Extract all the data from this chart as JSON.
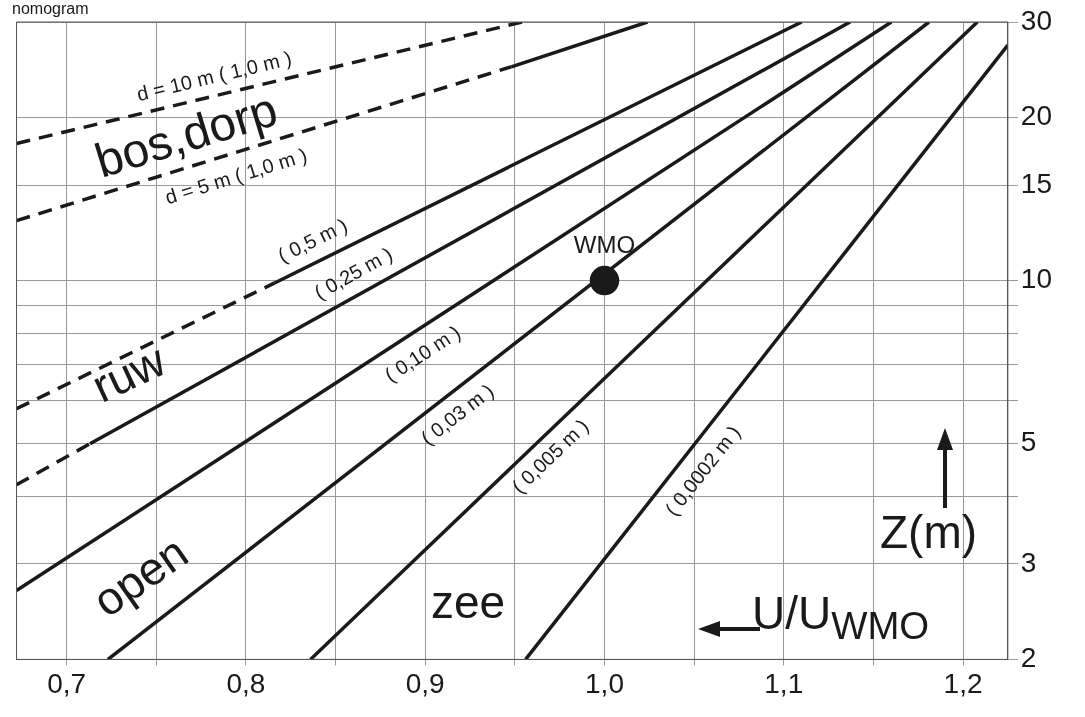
{
  "chart_data": {
    "type": "line",
    "title": "nomogram",
    "xlabel": "U/U$_{WMO}$",
    "ylabel": "Z(m)",
    "log": "y",
    "grid": true,
    "xlim": [
      0.672,
      1.225
    ],
    "ylim": [
      2,
      30
    ],
    "xticks": [
      {
        "value": 0.7,
        "label": "0,7"
      },
      {
        "value": 0.75,
        "label": null
      },
      {
        "value": 0.8,
        "label": "0,8"
      },
      {
        "value": 0.85,
        "label": null
      },
      {
        "value": 0.9,
        "label": "0,9"
      },
      {
        "value": 0.95,
        "label": null
      },
      {
        "value": 1.0,
        "label": "1,0"
      },
      {
        "value": 1.05,
        "label": null
      },
      {
        "value": 1.1,
        "label": "1,1"
      },
      {
        "value": 1.15,
        "label": null
      },
      {
        "value": 1.2,
        "label": "1,2"
      }
    ],
    "yticks": [
      2,
      3,
      {
        "value": 4,
        "label": null
      },
      5,
      {
        "value": 6,
        "label": null
      },
      {
        "value": 7,
        "label": null
      },
      {
        "value": 8,
        "label": null
      },
      {
        "value": 9,
        "label": null
      },
      10,
      15,
      20,
      30
    ],
    "series": [
      {
        "name": "d = 10 m ( 1,0 m )",
        "color": "#1a1a1a",
        "line_style": "dashed",
        "marker": "none",
        "x": [
          0.672,
          0.954
        ],
        "values": [
          17.9,
          30
        ]
      },
      {
        "name": "d = 5 m ( 1,0 m )",
        "color": "#1a1a1a",
        "line_style": "dashed",
        "marker": "none",
        "x": [
          0.672,
          0.948
        ],
        "values": [
          12.9,
          24.8
        ]
      },
      {
        "color": "#1a1a1a",
        "line_style": "solid",
        "marker": "none",
        "x": [
          0.948,
          1.024
        ],
        "values": [
          24.8,
          30
        ]
      },
      {
        "color": "#1a1a1a",
        "line_style": "dashed",
        "marker": "none",
        "x": [
          0.672,
          0.816
        ],
        "values": [
          5.8,
          9.9
        ]
      },
      {
        "name": "( 0,5 m )",
        "color": "#1a1a1a",
        "line_style": "solid",
        "marker": "none",
        "x": [
          0.816,
          1.11
        ],
        "values": [
          9.9,
          30
        ]
      },
      {
        "color": "#1a1a1a",
        "line_style": "dashed",
        "marker": "none",
        "x": [
          0.672,
          0.713
        ],
        "values": [
          4.2,
          5.0
        ]
      },
      {
        "name": "( 0,25 m )",
        "color": "#1a1a1a",
        "line_style": "solid",
        "marker": "none",
        "x": [
          0.713,
          1.137
        ],
        "values": [
          5.0,
          30
        ]
      },
      {
        "name": "( 0,10 m )",
        "color": "#1a1a1a",
        "line_style": "solid",
        "marker": "none",
        "x": [
          0.672,
          1.16
        ],
        "values": [
          2.68,
          30
        ]
      },
      {
        "name": "( 0,03 m )",
        "color": "#1a1a1a",
        "line_style": "solid",
        "marker": "none",
        "x": [
          0.723,
          1.181
        ],
        "values": [
          2,
          30
        ]
      },
      {
        "name": "( 0,005 m )",
        "color": "#1a1a1a",
        "line_style": "solid",
        "marker": "none",
        "x": [
          0.836,
          1.208
        ],
        "values": [
          2,
          30
        ]
      },
      {
        "name": "( 0,0002 m )",
        "color": "#1a1a1a",
        "line_style": "solid",
        "marker": "none",
        "x": [
          0.956,
          1.225
        ],
        "values": [
          2,
          27.2
        ]
      },
      {
        "name": "WMO",
        "type": "scatter",
        "color": "#1a1a1a",
        "marker": "circle",
        "x": [
          1.0
        ],
        "values": [
          10
        ]
      }
    ],
    "annotations": [
      "bos,dorp",
      "ruw",
      "open",
      "zee"
    ]
  }
}
